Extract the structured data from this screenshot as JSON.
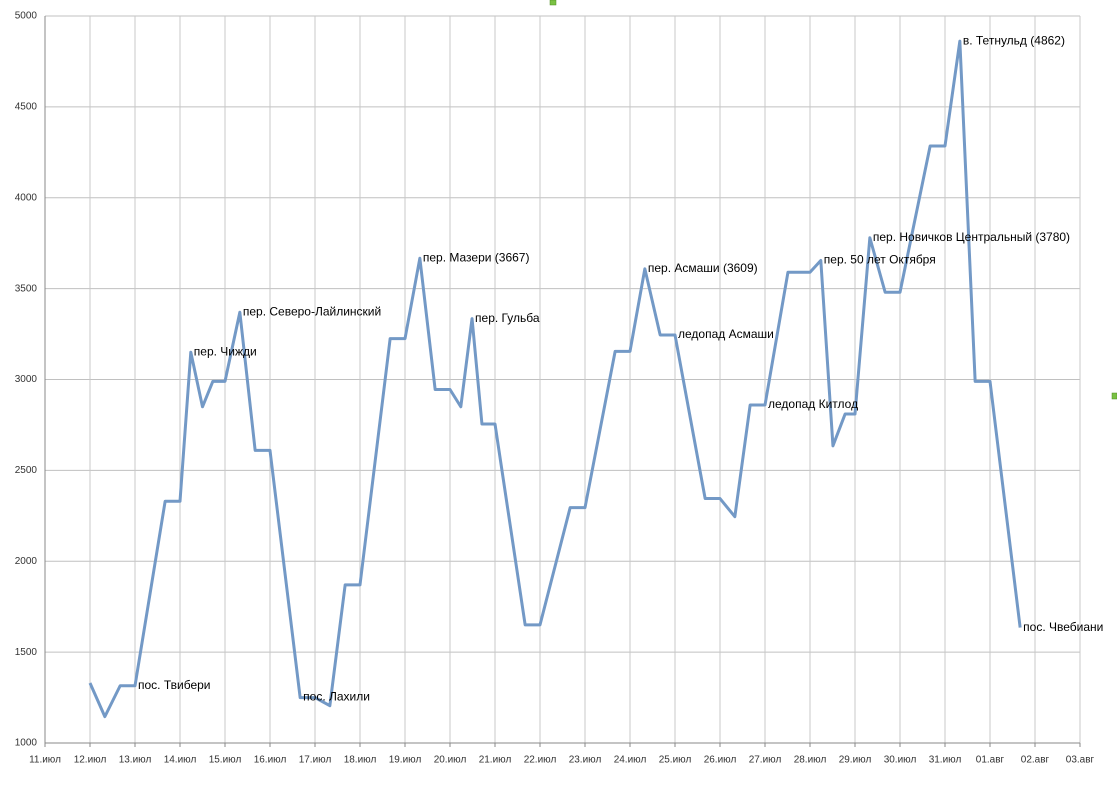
{
  "chart_data": {
    "type": "line",
    "xlim": [
      0,
      23
    ],
    "xticks": [
      {
        "value": 0,
        "label": "11.июл"
      },
      {
        "value": 1,
        "label": "12.июл"
      },
      {
        "value": 2,
        "label": "13.июл"
      },
      {
        "value": 3,
        "label": "14.июл"
      },
      {
        "value": 4,
        "label": "15.июл"
      },
      {
        "value": 5,
        "label": "16.июл"
      },
      {
        "value": 6,
        "label": "17.июл"
      },
      {
        "value": 7,
        "label": "18.июл"
      },
      {
        "value": 8,
        "label": "19.июл"
      },
      {
        "value": 9,
        "label": "20.июл"
      },
      {
        "value": 10,
        "label": "21.июл"
      },
      {
        "value": 11,
        "label": "22.июл"
      },
      {
        "value": 12,
        "label": "23.июл"
      },
      {
        "value": 13,
        "label": "24.июл"
      },
      {
        "value": 14,
        "label": "25.июл"
      },
      {
        "value": 15,
        "label": "26.июл"
      },
      {
        "value": 16,
        "label": "27.июл"
      },
      {
        "value": 17,
        "label": "28.июл"
      },
      {
        "value": 18,
        "label": "29.июл"
      },
      {
        "value": 19,
        "label": "30.июл"
      },
      {
        "value": 20,
        "label": "31.июл"
      },
      {
        "value": 21,
        "label": "01.авг"
      },
      {
        "value": 22,
        "label": "02.авг"
      },
      {
        "value": 23,
        "label": "03.авг"
      }
    ],
    "ylim": [
      1000,
      5000
    ],
    "yticks": [
      1000,
      1500,
      2000,
      2500,
      3000,
      3500,
      4000,
      4500,
      5000
    ],
    "grid": true,
    "x": [
      1,
      1.33,
      1.67,
      2,
      2.67,
      3,
      3.24,
      3.5,
      3.73,
      4,
      4.33,
      4.67,
      5,
      5.67,
      6,
      6.33,
      6.67,
      7,
      7.67,
      8,
      8.33,
      8.67,
      9,
      9.24,
      9.49,
      9.71,
      10,
      10.67,
      11,
      11.67,
      12,
      12.67,
      13,
      13.33,
      13.67,
      14,
      14.67,
      15,
      15.33,
      15.67,
      16,
      16.51,
      17,
      17.24,
      17.51,
      17.78,
      18,
      18.33,
      18.67,
      19,
      19.67,
      20,
      20.33,
      20.67,
      21,
      21.67
    ],
    "series": [
      {
        "color": "#7399c6",
        "values": [
          1330,
          1145,
          1315,
          1315,
          2330,
          2330,
          3150,
          2850,
          2990,
          2990,
          3370,
          2610,
          2610,
          1250,
          1250,
          1205,
          1870,
          1870,
          3225,
          3225,
          3667,
          2945,
          2945,
          2850,
          3335,
          2755,
          2755,
          1650,
          1650,
          2295,
          2295,
          3155,
          3155,
          3609,
          3245,
          3245,
          2345,
          2345,
          2245,
          2860,
          2860,
          3590,
          3590,
          3655,
          2635,
          2810,
          2810,
          3780,
          3480,
          3480,
          4285,
          4285,
          4862,
          2990,
          2990,
          1635
        ],
        "point_labels": [
          null,
          null,
          null,
          "пос. Твибери",
          null,
          null,
          "пер. Чижди",
          null,
          null,
          null,
          "пер. Северо-Лайлинский",
          null,
          null,
          "пос. Лахили",
          null,
          null,
          null,
          null,
          null,
          null,
          "пер. Мазери (3667)",
          null,
          null,
          null,
          "пер. Гульба",
          null,
          null,
          null,
          null,
          null,
          null,
          null,
          null,
          "пер. Асмаши (3609)",
          null,
          "ледопад Асмаши",
          null,
          null,
          null,
          null,
          "ледопад Китлод",
          null,
          null,
          "пер. 50 лет Октября",
          null,
          null,
          null,
          "пер. Новичков Центральный (3780)",
          null,
          null,
          null,
          null,
          "в. Тетнульд (4862)",
          null,
          null,
          "пос. Чвебиани"
        ]
      }
    ]
  }
}
